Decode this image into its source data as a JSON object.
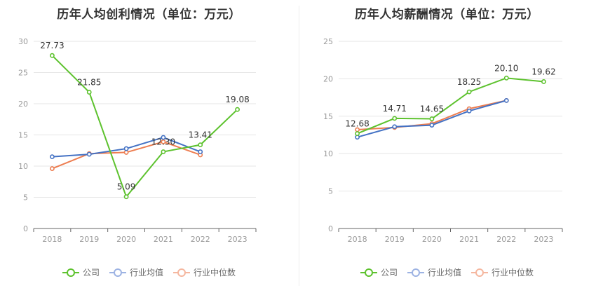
{
  "chart_data": [
    {
      "type": "line",
      "title": "历年人均创利情况（单位：万元）",
      "categories": [
        "2018",
        "2019",
        "2020",
        "2021",
        "2022",
        "2023"
      ],
      "ylim": [
        0,
        30
      ],
      "yticks": [
        0,
        5,
        10,
        15,
        20,
        25,
        30
      ],
      "grid": true,
      "legend_position": "bottom",
      "series": [
        {
          "name": "公司",
          "color": "#5dc22e",
          "values": [
            27.73,
            21.85,
            5.09,
            12.3,
            13.41,
            19.08
          ],
          "labels": [
            "27.73",
            "21.85",
            "5.09",
            "12.30",
            "13.41",
            "19.08"
          ]
        },
        {
          "name": "行业均值",
          "color": "#4472c4",
          "values": [
            11.5,
            11.9,
            12.8,
            14.6,
            12.3,
            null
          ]
        },
        {
          "name": "行业中位数",
          "color": "#ed7d50",
          "values": [
            9.6,
            12.0,
            12.2,
            13.9,
            11.8,
            null
          ]
        }
      ]
    },
    {
      "type": "line",
      "title": "历年人均薪酬情况（单位：万元）",
      "categories": [
        "2018",
        "2019",
        "2020",
        "2021",
        "2022",
        "2023"
      ],
      "ylim": [
        0,
        25
      ],
      "yticks": [
        0,
        5,
        10,
        15,
        20,
        25
      ],
      "grid": true,
      "legend_position": "bottom",
      "series": [
        {
          "name": "公司",
          "color": "#5dc22e",
          "values": [
            12.68,
            14.71,
            14.65,
            18.25,
            20.1,
            19.62
          ],
          "labels": [
            "12.68",
            "14.71",
            "14.65",
            "18.25",
            "20.10",
            "19.62"
          ]
        },
        {
          "name": "行业均值",
          "color": "#4472c4",
          "values": [
            12.2,
            13.6,
            13.8,
            15.7,
            17.1,
            null
          ]
        },
        {
          "name": "行业中位数",
          "color": "#ed7d50",
          "values": [
            13.2,
            13.5,
            14.0,
            16.0,
            17.1,
            null
          ]
        }
      ]
    }
  ],
  "legend": {
    "company": "公司",
    "industry_mean": "行业均值",
    "industry_median": "行业中位数"
  }
}
